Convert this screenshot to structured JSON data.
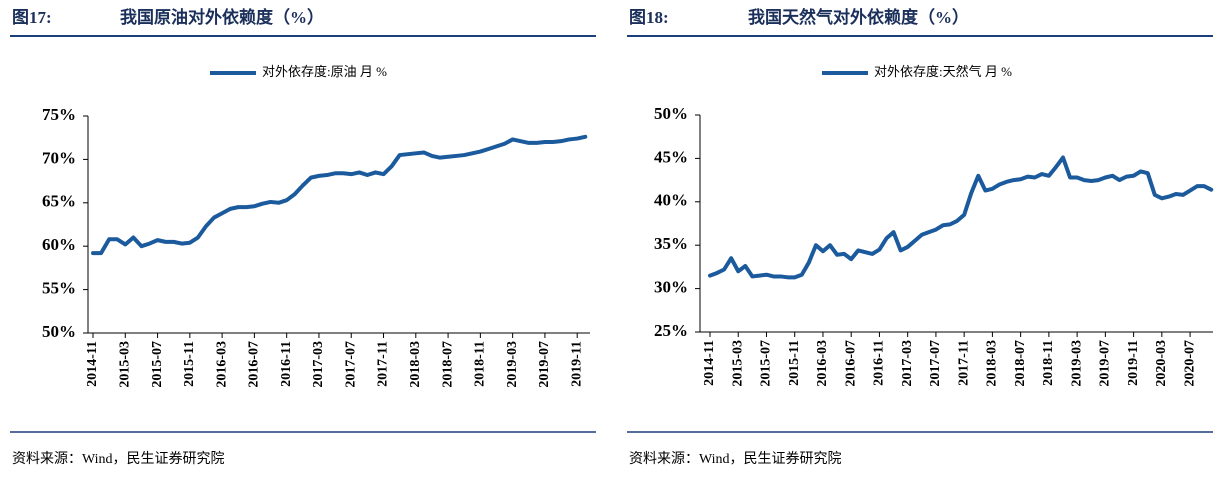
{
  "chart_data": [
    {
      "type": "line",
      "figure": "图17:",
      "title": "我国原油对外依赖度（%）",
      "source": "资料来源：Wind，民生证券研究院",
      "categories": [
        "2014-11",
        null,
        null,
        null,
        "2015-03",
        null,
        null,
        null,
        "2015-07",
        null,
        null,
        null,
        "2015-11",
        null,
        null,
        null,
        "2016-03",
        null,
        null,
        null,
        "2016-07",
        null,
        null,
        null,
        "2016-11",
        null,
        null,
        null,
        "2017-03",
        null,
        null,
        null,
        "2017-07",
        null,
        null,
        null,
        "2017-11",
        null,
        null,
        null,
        "2018-03",
        null,
        null,
        null,
        "2018-07",
        null,
        null,
        null,
        "2018-11",
        null,
        null,
        null,
        "2019-03",
        null,
        null,
        null,
        "2019-07",
        null,
        null,
        null,
        "2019-11",
        null
      ],
      "series": [
        {
          "name": "对外依存度:原油 月 %",
          "color": "#1b5a9c",
          "values": [
            59.2,
            59.2,
            60.8,
            60.8,
            60.2,
            61.0,
            60.0,
            60.3,
            60.7,
            60.5,
            60.5,
            60.3,
            60.4,
            61.0,
            62.3,
            63.3,
            63.8,
            64.3,
            64.5,
            64.5,
            64.6,
            64.9,
            65.1,
            65.0,
            65.3,
            66.0,
            67.0,
            67.9,
            68.1,
            68.2,
            68.4,
            68.4,
            68.3,
            68.5,
            68.2,
            68.5,
            68.3,
            69.2,
            70.5,
            70.6,
            70.7,
            70.8,
            70.4,
            70.2,
            70.3,
            70.4,
            70.5,
            70.7,
            70.9,
            71.2,
            71.5,
            71.8,
            72.3,
            72.1,
            71.9,
            71.9,
            72.0,
            72.0,
            72.1,
            72.3,
            72.4,
            72.6
          ]
        }
      ],
      "ylim": [
        50,
        75
      ],
      "yticks": [
        {
          "value": 50,
          "label": "50%"
        },
        {
          "value": 55,
          "label": "55%"
        },
        {
          "value": 60,
          "label": "60%"
        },
        {
          "value": 65,
          "label": "65%"
        },
        {
          "value": 70,
          "label": "70%"
        },
        {
          "value": 75,
          "label": "75%"
        }
      ],
      "grid": false,
      "legend": "top"
    },
    {
      "type": "line",
      "figure": "图18:",
      "title": "我国天然气对外依赖度（%）",
      "source": "资料来源：Wind，民生证券研究院",
      "categories": [
        "2014-11",
        null,
        null,
        null,
        "2015-03",
        null,
        null,
        null,
        "2015-07",
        null,
        null,
        null,
        "2015-11",
        null,
        null,
        null,
        "2016-03",
        null,
        null,
        null,
        "2016-07",
        null,
        null,
        null,
        "2016-11",
        null,
        null,
        null,
        "2017-03",
        null,
        null,
        null,
        "2017-07",
        null,
        null,
        null,
        "2017-11",
        null,
        null,
        null,
        "2018-03",
        null,
        null,
        null,
        "2018-07",
        null,
        null,
        null,
        "2018-11",
        null,
        null,
        null,
        "2019-03",
        null,
        null,
        null,
        "2019-07",
        null,
        null,
        null,
        "2019-11",
        null,
        null,
        null,
        "2020-03",
        null,
        null,
        null,
        "2020-07",
        null,
        null,
        null
      ],
      "series": [
        {
          "name": "对外依存度:天然气 月 %",
          "color": "#1b5a9c",
          "values": [
            31.5,
            31.8,
            32.2,
            33.5,
            32.0,
            32.6,
            31.4,
            31.5,
            31.6,
            31.4,
            31.4,
            31.3,
            31.3,
            31.6,
            33.0,
            35.0,
            34.3,
            35.0,
            33.9,
            34.0,
            33.4,
            34.4,
            34.2,
            34.0,
            34.5,
            35.8,
            36.5,
            34.4,
            34.8,
            35.5,
            36.2,
            36.5,
            36.8,
            37.3,
            37.4,
            37.8,
            38.5,
            41.0,
            43.0,
            41.3,
            41.5,
            42.0,
            42.3,
            42.5,
            42.6,
            42.9,
            42.8,
            43.2,
            43.0,
            44.0,
            45.1,
            42.8,
            42.8,
            42.5,
            42.4,
            42.5,
            42.8,
            43.0,
            42.5,
            42.9,
            43.0,
            43.5,
            43.3,
            40.8,
            40.4,
            40.6,
            40.9,
            40.8,
            41.3,
            41.8,
            41.8,
            41.4
          ]
        }
      ],
      "ylim": [
        25,
        50
      ],
      "yticks": [
        {
          "value": 25,
          "label": "25%"
        },
        {
          "value": 30,
          "label": "30%"
        },
        {
          "value": 35,
          "label": "35%"
        },
        {
          "value": 40,
          "label": "40%"
        },
        {
          "value": 45,
          "label": "45%"
        },
        {
          "value": 50,
          "label": "50%"
        }
      ],
      "grid": false,
      "legend": "top"
    }
  ]
}
